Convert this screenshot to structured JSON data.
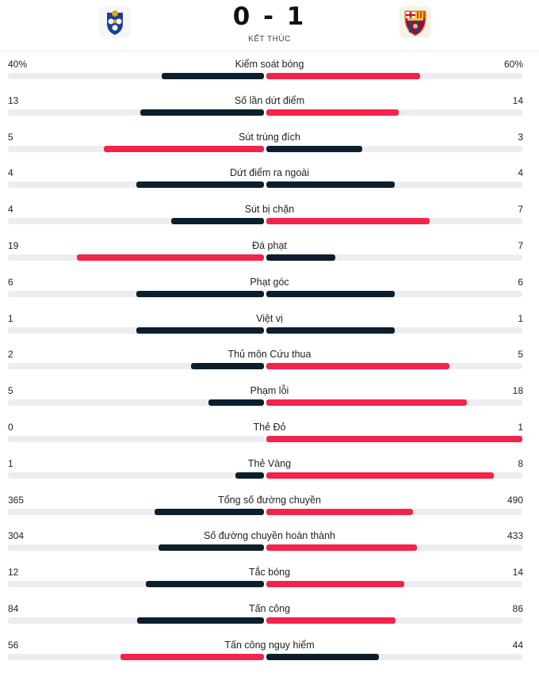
{
  "match": {
    "score": "0 - 1",
    "status": "KẾT THÚC",
    "home_logo_icon": "fc-porto-crest-icon",
    "away_logo_icon": "fc-barcelona-crest-icon"
  },
  "colors": {
    "winner": "#f3234a",
    "other": "#0d1f2d",
    "track": "#ededf0"
  },
  "stats": [
    {
      "label": "Kiểm soát bóng",
      "home": "40%",
      "away": "60%",
      "home_value": 40,
      "away_value": 60
    },
    {
      "label": "Số lần dứt điểm",
      "home": "13",
      "away": "14",
      "home_value": 13,
      "away_value": 14
    },
    {
      "label": "Sút trúng đích",
      "home": "5",
      "away": "3",
      "home_value": 5,
      "away_value": 3
    },
    {
      "label": "Dứt điểm ra ngoài",
      "home": "4",
      "away": "4",
      "home_value": 4,
      "away_value": 4
    },
    {
      "label": "Sút bị chặn",
      "home": "4",
      "away": "7",
      "home_value": 4,
      "away_value": 7
    },
    {
      "label": "Đá phạt",
      "home": "19",
      "away": "7",
      "home_value": 19,
      "away_value": 7
    },
    {
      "label": "Phạt góc",
      "home": "6",
      "away": "6",
      "home_value": 6,
      "away_value": 6
    },
    {
      "label": "Việt vị",
      "home": "1",
      "away": "1",
      "home_value": 1,
      "away_value": 1
    },
    {
      "label": "Thủ môn Cứu thua",
      "home": "2",
      "away": "5",
      "home_value": 2,
      "away_value": 5
    },
    {
      "label": "Phạm lỗi",
      "home": "5",
      "away": "18",
      "home_value": 5,
      "away_value": 18
    },
    {
      "label": "Thẻ Đỏ",
      "home": "0",
      "away": "1",
      "home_value": 0,
      "away_value": 1
    },
    {
      "label": "Thẻ Vàng",
      "home": "1",
      "away": "8",
      "home_value": 1,
      "away_value": 8
    },
    {
      "label": "Tổng số đường chuyền",
      "home": "365",
      "away": "490",
      "home_value": 365,
      "away_value": 490
    },
    {
      "label": "Số đường chuyền hoàn thành",
      "home": "304",
      "away": "433",
      "home_value": 304,
      "away_value": 433
    },
    {
      "label": "Tắc bóng",
      "home": "12",
      "away": "14",
      "home_value": 12,
      "away_value": 14
    },
    {
      "label": "Tấn công",
      "home": "84",
      "away": "86",
      "home_value": 84,
      "away_value": 86
    },
    {
      "label": "Tấn công nguy hiểm",
      "home": "56",
      "away": "44",
      "home_value": 56,
      "away_value": 44
    }
  ]
}
